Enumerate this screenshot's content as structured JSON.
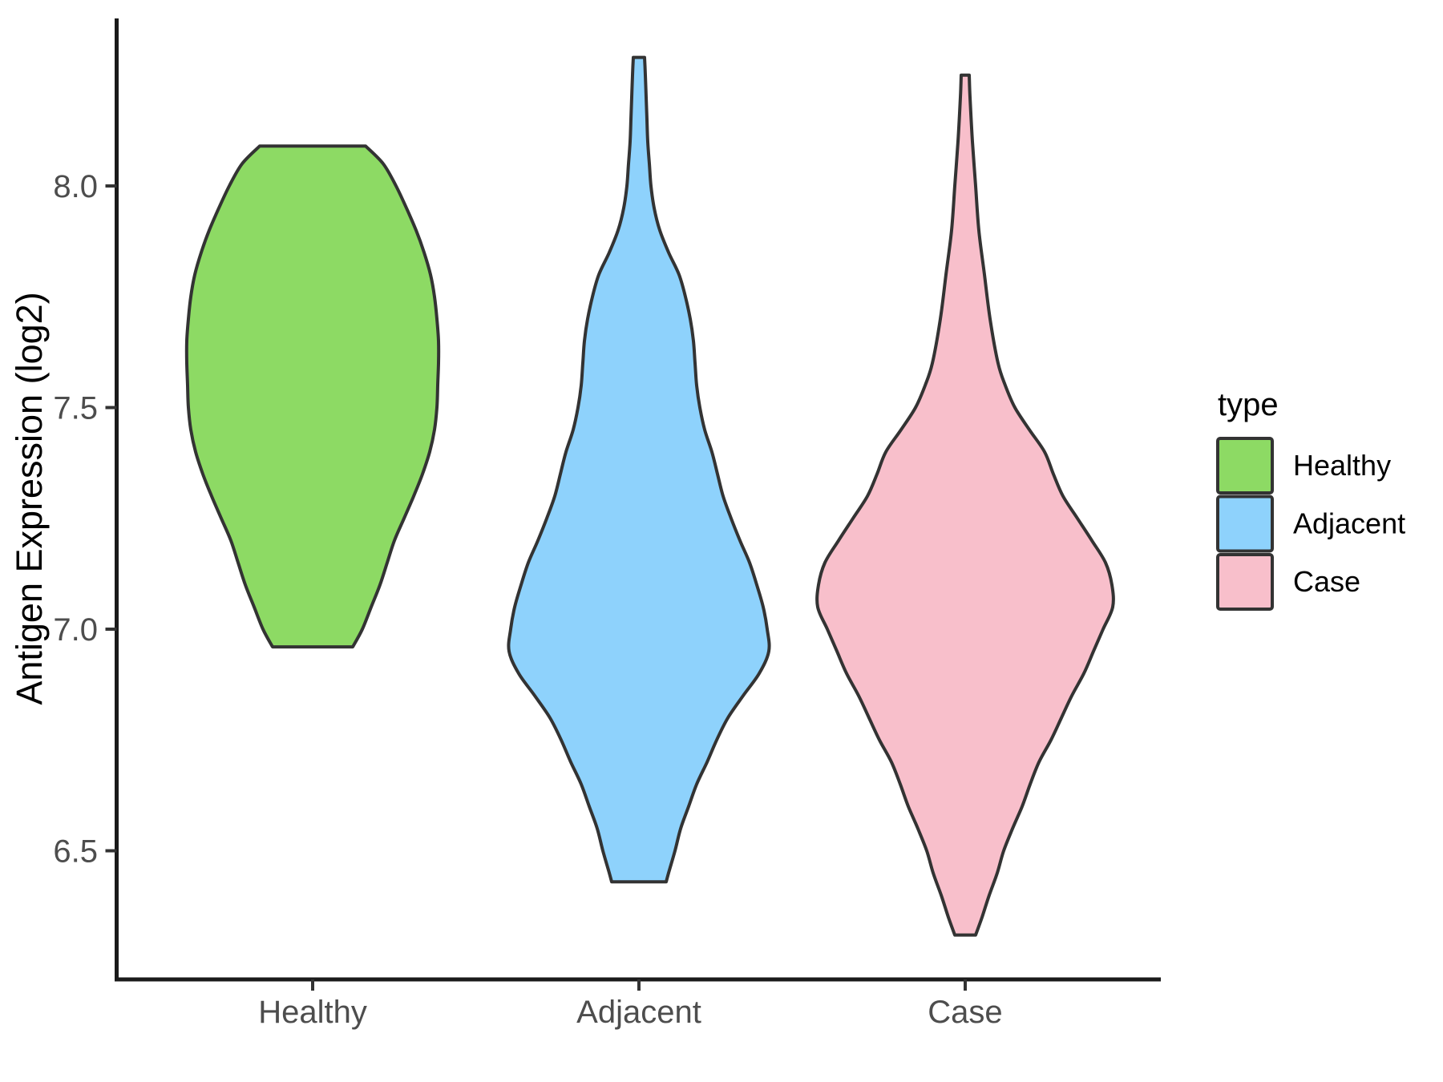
{
  "axes": {
    "y_title": "Antigen Expression (log2)",
    "y_ticks": [
      {
        "value": 8.0,
        "label": "8.0"
      },
      {
        "value": 7.5,
        "label": "7.5"
      },
      {
        "value": 7.0,
        "label": "7.0"
      },
      {
        "value": 6.5,
        "label": "6.5"
      }
    ],
    "x_tick_labels": [
      "Healthy",
      "Adjacent",
      "Case"
    ]
  },
  "legend": {
    "title": "type",
    "items": [
      {
        "label": "Healthy",
        "color": "#8DDA64"
      },
      {
        "label": "Adjacent",
        "color": "#8ED2FC"
      },
      {
        "label": "Case",
        "color": "#F8BFCB"
      }
    ]
  },
  "style": {
    "outline_color": "#333333",
    "axis_line_color": "#1a1a1a",
    "tick_color": "#333333",
    "tick_label_color": "#4d4d4d",
    "background": "#ffffff"
  },
  "chart_data": {
    "type": "violin",
    "title": "",
    "xlabel": "",
    "ylabel": "Antigen Expression (log2)",
    "categories": [
      "Healthy",
      "Adjacent",
      "Case"
    ],
    "y_axis": {
      "ticks": [
        6.5,
        7.0,
        7.5,
        8.0
      ],
      "range_shown": [
        6.2,
        8.35
      ]
    },
    "legend_position": "right",
    "grid": false,
    "series": [
      {
        "name": "Healthy",
        "fill": "#8DDA64",
        "value_min": 6.96,
        "value_max": 8.09,
        "widest_at": 7.6,
        "profile": [
          [
            8.09,
            66
          ],
          [
            8.05,
            88
          ],
          [
            8.0,
            104
          ],
          [
            7.95,
            117
          ],
          [
            7.9,
            129
          ],
          [
            7.85,
            139
          ],
          [
            7.8,
            147
          ],
          [
            7.75,
            152
          ],
          [
            7.7,
            155
          ],
          [
            7.65,
            157
          ],
          [
            7.6,
            157
          ],
          [
            7.55,
            156
          ],
          [
            7.5,
            155
          ],
          [
            7.45,
            152
          ],
          [
            7.4,
            146
          ],
          [
            7.35,
            137
          ],
          [
            7.3,
            126
          ],
          [
            7.25,
            114
          ],
          [
            7.2,
            102
          ],
          [
            7.15,
            93
          ],
          [
            7.1,
            84
          ],
          [
            7.05,
            73
          ],
          [
            7.0,
            62
          ],
          [
            6.96,
            50
          ]
        ]
      },
      {
        "name": "Adjacent",
        "fill": "#8ED2FC",
        "value_min": 6.43,
        "value_max": 8.29,
        "widest_at": 6.95,
        "profile": [
          [
            8.29,
            7
          ],
          [
            8.25,
            8
          ],
          [
            8.2,
            9
          ],
          [
            8.15,
            10
          ],
          [
            8.1,
            11
          ],
          [
            8.05,
            13
          ],
          [
            8.0,
            15
          ],
          [
            7.95,
            19
          ],
          [
            7.9,
            26
          ],
          [
            7.85,
            37
          ],
          [
            7.8,
            50
          ],
          [
            7.75,
            58
          ],
          [
            7.7,
            64
          ],
          [
            7.65,
            68
          ],
          [
            7.6,
            70
          ],
          [
            7.55,
            72
          ],
          [
            7.5,
            76
          ],
          [
            7.45,
            82
          ],
          [
            7.4,
            91
          ],
          [
            7.35,
            98
          ],
          [
            7.3,
            105
          ],
          [
            7.25,
            115
          ],
          [
            7.2,
            126
          ],
          [
            7.15,
            138
          ],
          [
            7.1,
            147
          ],
          [
            7.05,
            155
          ],
          [
            7.0,
            160
          ],
          [
            6.95,
            162
          ],
          [
            6.9,
            150
          ],
          [
            6.85,
            130
          ],
          [
            6.8,
            111
          ],
          [
            6.75,
            97
          ],
          [
            6.7,
            85
          ],
          [
            6.65,
            72
          ],
          [
            6.6,
            62
          ],
          [
            6.55,
            52
          ],
          [
            6.5,
            45
          ],
          [
            6.45,
            37
          ],
          [
            6.43,
            34
          ]
        ]
      },
      {
        "name": "Case",
        "fill": "#F8BFCB",
        "value_min": 6.31,
        "value_max": 8.25,
        "widest_at": 7.07,
        "profile": [
          [
            8.25,
            5
          ],
          [
            8.2,
            6
          ],
          [
            8.1,
            9
          ],
          [
            8.0,
            13
          ],
          [
            7.9,
            17
          ],
          [
            7.8,
            24
          ],
          [
            7.7,
            31
          ],
          [
            7.6,
            41
          ],
          [
            7.55,
            50
          ],
          [
            7.5,
            62
          ],
          [
            7.45,
            80
          ],
          [
            7.4,
            99
          ],
          [
            7.35,
            110
          ],
          [
            7.3,
            122
          ],
          [
            7.25,
            140
          ],
          [
            7.2,
            158
          ],
          [
            7.15,
            175
          ],
          [
            7.1,
            183
          ],
          [
            7.05,
            184
          ],
          [
            7.0,
            172
          ],
          [
            6.95,
            160
          ],
          [
            6.9,
            148
          ],
          [
            6.85,
            133
          ],
          [
            6.8,
            120
          ],
          [
            6.75,
            107
          ],
          [
            6.7,
            92
          ],
          [
            6.65,
            81
          ],
          [
            6.6,
            71
          ],
          [
            6.55,
            59
          ],
          [
            6.5,
            48
          ],
          [
            6.45,
            40
          ],
          [
            6.4,
            30
          ],
          [
            6.35,
            21
          ],
          [
            6.31,
            13
          ]
        ]
      }
    ]
  }
}
